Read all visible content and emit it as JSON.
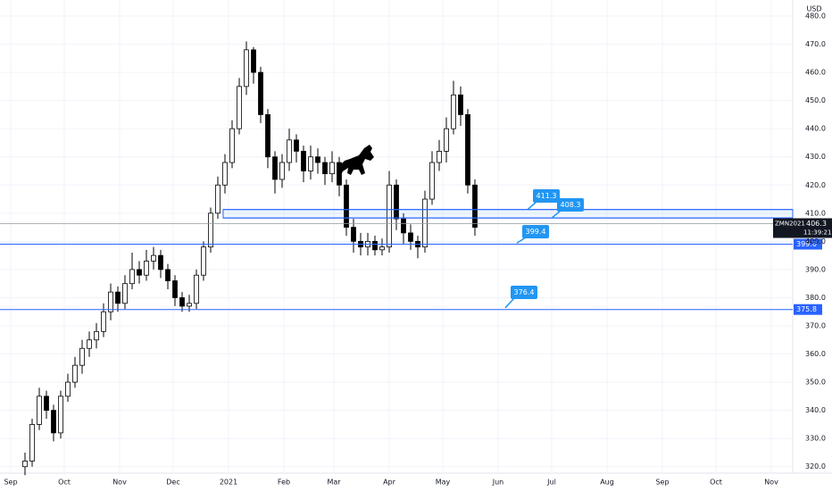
{
  "chart_data": {
    "type": "candlestick",
    "currency": "USD",
    "x": [
      8,
      12,
      16,
      20,
      24,
      28,
      32,
      36,
      40,
      44,
      48,
      52,
      56,
      60,
      64,
      68,
      72,
      76,
      80,
      84,
      88,
      92,
      96,
      100,
      104,
      108,
      112,
      116,
      120,
      124,
      128,
      132,
      136,
      140,
      144,
      148,
      152,
      156,
      160,
      164,
      168,
      172,
      176,
      180,
      184,
      188,
      192,
      196,
      200,
      204,
      208,
      212,
      216,
      220,
      224,
      228,
      232,
      236,
      240,
      244,
      248,
      252,
      256,
      260
    ],
    "open": [
      320,
      322,
      335,
      345,
      340,
      332,
      345,
      350,
      356,
      362,
      365,
      368,
      375,
      382,
      378,
      385,
      390,
      388,
      393,
      395,
      390,
      386,
      380,
      377,
      378,
      388,
      398,
      410,
      420,
      428,
      440,
      455,
      468,
      460,
      445,
      430,
      422,
      428,
      436,
      432,
      425,
      430,
      428,
      424,
      428,
      420,
      405,
      400,
      398,
      400,
      397,
      398,
      420,
      408,
      403,
      400,
      398,
      415,
      428,
      432,
      440,
      452,
      445,
      420
    ],
    "high": [
      325,
      337,
      348,
      347,
      342,
      347,
      353,
      359,
      365,
      368,
      371,
      378,
      385,
      384,
      388,
      396,
      393,
      397,
      398,
      397,
      392,
      388,
      382,
      381,
      390,
      400,
      412,
      423,
      431,
      443,
      458,
      471,
      469,
      462,
      447,
      432,
      431,
      440,
      438,
      434,
      434,
      433,
      430,
      432,
      430,
      422,
      408,
      403,
      403,
      402,
      401,
      425,
      422,
      410,
      406,
      402,
      418,
      432,
      436,
      444,
      457,
      455,
      447,
      422
    ],
    "low": [
      317,
      320,
      333,
      337,
      329,
      330,
      343,
      348,
      353,
      359,
      362,
      366,
      372,
      375,
      376,
      383,
      385,
      386,
      390,
      387,
      383,
      377,
      375,
      375,
      376,
      386,
      396,
      408,
      417,
      426,
      438,
      452,
      456,
      442,
      426,
      417,
      419,
      425,
      428,
      421,
      422,
      424,
      420,
      421,
      416,
      402,
      396,
      395,
      395,
      395,
      395,
      396,
      404,
      399,
      397,
      394,
      396,
      413,
      425,
      428,
      438,
      441,
      417,
      402
    ],
    "close": [
      322,
      335,
      345,
      340,
      332,
      345,
      350,
      356,
      362,
      365,
      368,
      375,
      382,
      378,
      385,
      390,
      388,
      393,
      395,
      390,
      386,
      380,
      377,
      378,
      388,
      398,
      410,
      420,
      428,
      440,
      455,
      468,
      460,
      445,
      430,
      422,
      428,
      436,
      432,
      425,
      430,
      428,
      424,
      428,
      420,
      405,
      400,
      398,
      400,
      397,
      398,
      420,
      408,
      403,
      400,
      398,
      415,
      428,
      432,
      440,
      452,
      445,
      420,
      405
    ],
    "xlim": [
      -6,
      438
    ],
    "ylim": [
      317.7,
      485.7
    ],
    "xticks": [
      {
        "value": 0,
        "label": "Sep"
      },
      {
        "value": 30,
        "label": "Oct"
      },
      {
        "value": 61,
        "label": "Nov"
      },
      {
        "value": 91,
        "label": "Dec"
      },
      {
        "value": 122,
        "label": "2021"
      },
      {
        "value": 153,
        "label": "Feb"
      },
      {
        "value": 181,
        "label": "Mar"
      },
      {
        "value": 212,
        "label": "Apr"
      },
      {
        "value": 242,
        "label": "May"
      },
      {
        "value": 273,
        "label": "Jun"
      },
      {
        "value": 303,
        "label": "Jul"
      },
      {
        "value": 334,
        "label": "Aug"
      },
      {
        "value": 365,
        "label": "Sep"
      },
      {
        "value": 395,
        "label": "Oct"
      },
      {
        "value": 426,
        "label": "Nov"
      }
    ],
    "yticks": [
      {
        "value": 320,
        "label": "320.0"
      },
      {
        "value": 330,
        "label": "330.0"
      },
      {
        "value": 340,
        "label": "340.0"
      },
      {
        "value": 350,
        "label": "350.0"
      },
      {
        "value": 360,
        "label": "360.0"
      },
      {
        "value": 370,
        "label": "370.0"
      },
      {
        "value": 380,
        "label": "380.0"
      },
      {
        "value": 390,
        "label": "390.0"
      },
      {
        "value": 400,
        "label": "400.0"
      },
      {
        "value": 410,
        "label": "410.0"
      },
      {
        "value": 420,
        "label": "420.0"
      },
      {
        "value": 430,
        "label": "430.0"
      },
      {
        "value": 440,
        "label": "440.0"
      },
      {
        "value": 450,
        "label": "450.0"
      },
      {
        "value": 460,
        "label": "460.0"
      },
      {
        "value": 470,
        "label": "470.0"
      },
      {
        "value": 480,
        "label": "480.0"
      }
    ],
    "grid": true,
    "zone": [
      411.3,
      408.3
    ],
    "lines": [
      {
        "value": 399.0,
        "label": "399.0"
      },
      {
        "value": 375.8,
        "label": "375.8"
      }
    ],
    "callouts": [
      411.3,
      408.3,
      399.4,
      376.4
    ],
    "last_price": {
      "symbol": "ZMN2021",
      "value": 406.3,
      "countdown": "11:39:21"
    },
    "up_color": "#ffffff",
    "down_color": "#000000",
    "line_color": "#2962ff",
    "callout_color": "#2196f3"
  }
}
